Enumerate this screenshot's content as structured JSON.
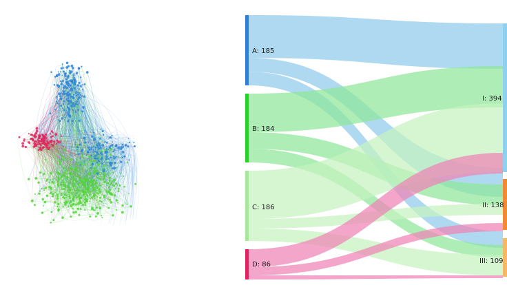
{
  "sources": [
    {
      "id": "A",
      "label": "A: 185",
      "color": "#2f7fd6",
      "flow_color": "#8fcbea"
    },
    {
      "id": "B",
      "label": "B: 184",
      "color": "#2ad12a",
      "flow_color": "#8fe89a"
    },
    {
      "id": "C",
      "label": "C: 186",
      "color": "#a8e89a",
      "flow_color": "#c6f2bf"
    },
    {
      "id": "D",
      "label": "D: 86",
      "color": "#e0245e",
      "flow_color": "#ef84b6"
    }
  ],
  "targets": [
    {
      "id": "I",
      "label": "I: 394",
      "color": "#8fd0ee"
    },
    {
      "id": "II",
      "label": "II: 138",
      "color": "#f08a35"
    },
    {
      "id": "III",
      "label": "III: 109",
      "color": "#f5b866"
    }
  ],
  "links": [
    {
      "source": "A",
      "target": "I"
    },
    {
      "source": "A",
      "target": "II"
    },
    {
      "source": "A",
      "target": "III"
    },
    {
      "source": "B",
      "target": "I"
    },
    {
      "source": "B",
      "target": "II"
    },
    {
      "source": "B",
      "target": "III"
    },
    {
      "source": "C",
      "target": "I"
    },
    {
      "source": "C",
      "target": "II"
    },
    {
      "source": "C",
      "target": "III"
    },
    {
      "source": "D",
      "target": "I"
    },
    {
      "source": "D",
      "target": "II"
    },
    {
      "source": "D",
      "target": "III"
    }
  ],
  "network": {
    "clusters": [
      {
        "name": "blue",
        "color": "#2f86d8"
      },
      {
        "name": "red",
        "color": "#e0245e"
      },
      {
        "name": "green",
        "color": "#55d43a"
      }
    ]
  }
}
